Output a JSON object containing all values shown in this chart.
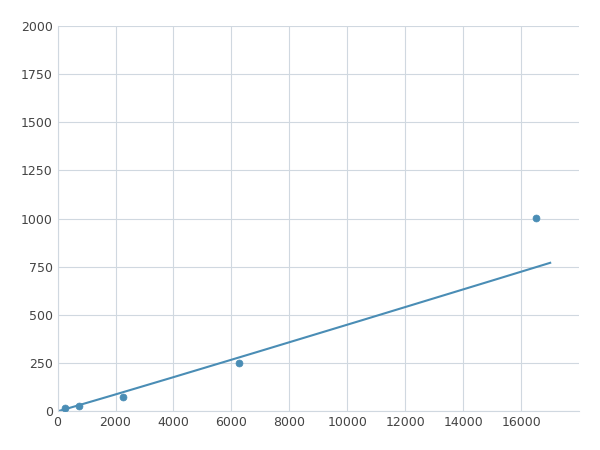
{
  "x": [
    250,
    750,
    2250,
    6250,
    16500
  ],
  "y": [
    15,
    25,
    75,
    250,
    1005
  ],
  "line_color": "#4a8db5",
  "marker_color": "#4a8db5",
  "marker_size": 5,
  "line_width": 1.5,
  "xlim": [
    0,
    18000
  ],
  "ylim": [
    0,
    2000
  ],
  "xticks": [
    0,
    2000,
    4000,
    6000,
    8000,
    10000,
    12000,
    14000,
    16000
  ],
  "yticks": [
    0,
    250,
    500,
    750,
    1000,
    1250,
    1500,
    1750,
    2000
  ],
  "grid_color": "#d0d8e0",
  "background_color": "#ffffff",
  "fig_background": "#ffffff",
  "power_exponent": 1.48
}
